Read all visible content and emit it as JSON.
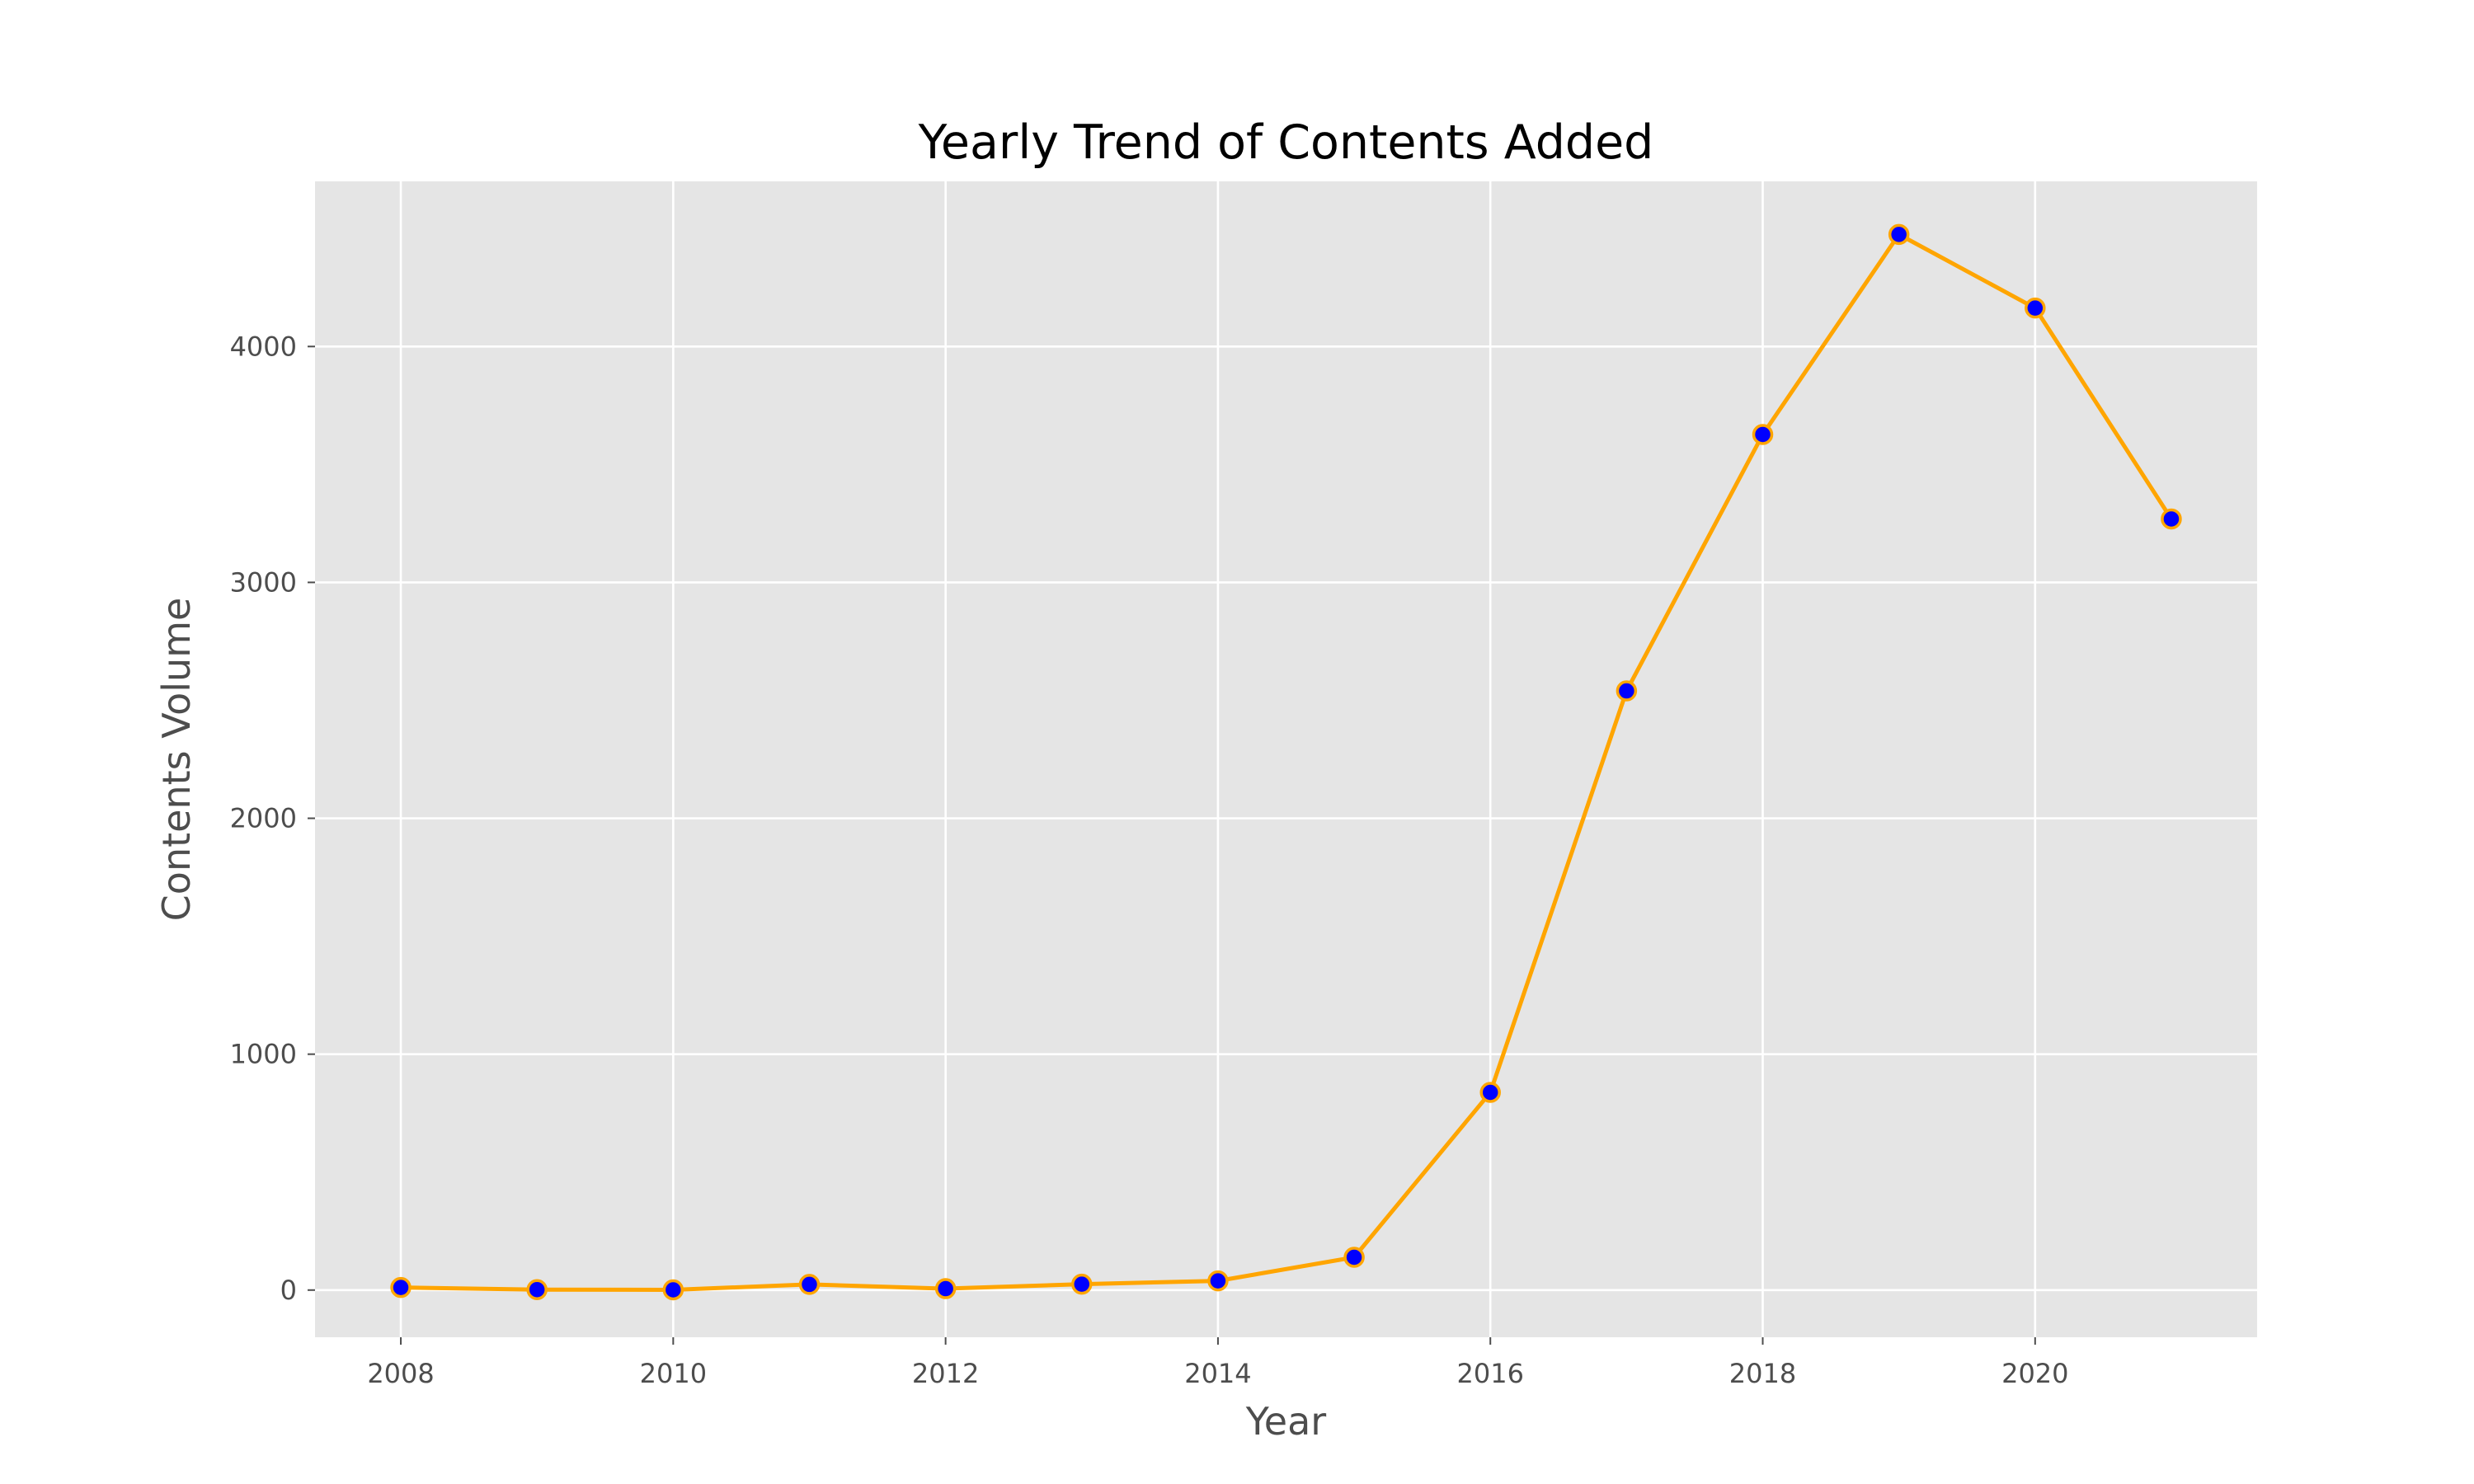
{
  "chart_data": {
    "type": "line",
    "title": "Yearly Trend of Contents Added",
    "xlabel": "Year",
    "ylabel": "Contents Volume",
    "x": [
      2008,
      2009,
      2010,
      2011,
      2012,
      2013,
      2014,
      2015,
      2016,
      2017,
      2018,
      2019,
      2020,
      2021
    ],
    "series": [
      {
        "values": [
          11,
          2,
          1,
          24,
          6,
          25,
          39,
          139,
          838,
          2540,
          3627,
          4475,
          4163,
          3269
        ]
      }
    ],
    "xlim": [
      2007.37,
      2021.63
    ],
    "ylim": [
      -200,
      4700
    ],
    "xticks": [
      "2008",
      "2010",
      "2012",
      "2014",
      "2016",
      "2018",
      "2020"
    ],
    "yticks": [
      "0",
      "1000",
      "2000",
      "3000",
      "4000"
    ],
    "grid": true,
    "style": {
      "background": "#e5e5e5",
      "grid_color": "#ffffff",
      "line_color": "#ffa500",
      "marker_fill": "#0000ff",
      "marker_edge": "#ffa500"
    }
  }
}
